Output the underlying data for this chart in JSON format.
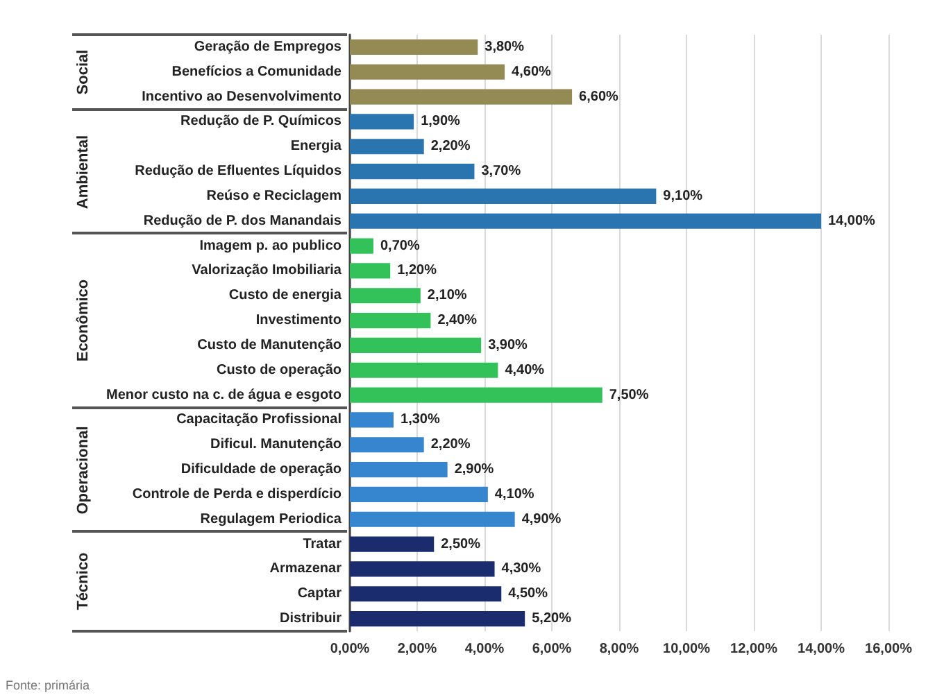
{
  "chart_data": {
    "type": "bar",
    "orientation": "horizontal",
    "categories": [
      "Geração de Empregos",
      "Benefícios a Comunidade",
      "Incentivo ao Desenvolvimento",
      "Redução de P. Químicos",
      "Energia",
      "Redução de Efluentes Líquidos",
      "Reúso e Reciclagem",
      "Redução de P. dos Manandais",
      "Imagem p. ao publico",
      "Valorização Imobiliaria",
      "Custo de energia",
      "Investimento",
      "Custo de Manutenção",
      "Custo de operação",
      "Menor custo na c. de água e esgoto",
      "Capacitação Profissional",
      "Dificul. Manutenção",
      "Dificuldade de operação",
      "Controle de Perda e disperdício",
      "Regulagem Periodica",
      "Tratar",
      "Armazenar",
      "Captar",
      "Distribuir"
    ],
    "values": [
      3.8,
      4.6,
      6.6,
      1.9,
      2.2,
      3.7,
      9.1,
      14.0,
      0.7,
      1.2,
      2.1,
      2.4,
      3.9,
      4.4,
      7.5,
      1.3,
      2.2,
      2.9,
      4.1,
      4.9,
      2.5,
      4.3,
      4.5,
      5.2
    ],
    "value_labels": [
      "3,80%",
      "4,60%",
      "6,60%",
      "1,90%",
      "2,20%",
      "3,70%",
      "9,10%",
      "14,00%",
      "0,70%",
      "1,20%",
      "2,10%",
      "2,40%",
      "3,90%",
      "4,40%",
      "7,50%",
      "1,30%",
      "2,20%",
      "2,90%",
      "4,10%",
      "4,90%",
      "2,50%",
      "4,30%",
      "4,50%",
      "5,20%"
    ],
    "colors": [
      "#948a54",
      "#948a54",
      "#948a54",
      "#2a74b0",
      "#2a74b0",
      "#2a74b0",
      "#2a74b0",
      "#2a74b0",
      "#33c25a",
      "#33c25a",
      "#33c25a",
      "#33c25a",
      "#33c25a",
      "#33c25a",
      "#33c25a",
      "#3585cf",
      "#3585cf",
      "#3585cf",
      "#3585cf",
      "#3585cf",
      "#1b2c6e",
      "#1b2c6e",
      "#1b2c6e",
      "#1b2c6e"
    ],
    "xlim": [
      0,
      16
    ],
    "xticks": [
      {
        "value": 0,
        "label": "0,00%"
      },
      {
        "value": 2,
        "label": "2,00%"
      },
      {
        "value": 4,
        "label": "4,00%"
      },
      {
        "value": 6,
        "label": "6,00%"
      },
      {
        "value": 8,
        "label": "8,00%"
      },
      {
        "value": 10,
        "label": "10,00%"
      },
      {
        "value": 12,
        "label": "12,00%"
      },
      {
        "value": 14,
        "label": "14,00%"
      },
      {
        "value": 16,
        "label": "16,00%"
      }
    ],
    "grid": "x",
    "annotations": [
      "Social",
      "Ambiental",
      "Econômico",
      "Operacional",
      "Técnico",
      "Fonte: primária"
    ]
  }
}
